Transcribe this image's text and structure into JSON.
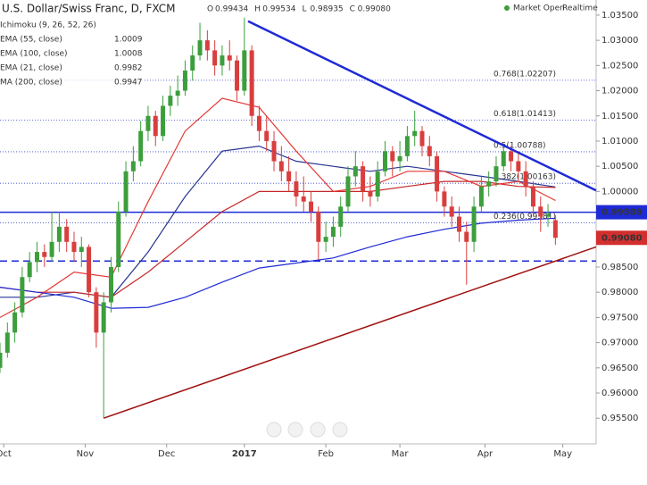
{
  "chart_data": {
    "type": "candlestick",
    "title": "U.S. Dollar/Swiss Franc, D, FXCM",
    "quote": [
      {
        "key": "O",
        "value": "0.99434"
      },
      {
        "key": "H",
        "value": "0.99534"
      },
      {
        "key": "L",
        "value": "0.98935"
      },
      {
        "key": "C",
        "value": "0.99080"
      }
    ],
    "status": [
      "Market Open",
      "Realtime"
    ],
    "up_color": "#3c9e3c",
    "down_color": "#d93e3e",
    "xlim": [
      0,
      161
    ],
    "ylim": [
      0.9499,
      1.038
    ],
    "xticks": [
      {
        "value": 1,
        "label": "Oct"
      },
      {
        "value": 23,
        "label": "Nov"
      },
      {
        "value": 45,
        "label": "Dec"
      },
      {
        "value": 66,
        "label": "2017"
      },
      {
        "value": 88,
        "label": "Feb"
      },
      {
        "value": 108,
        "label": "Mar"
      },
      {
        "value": 131,
        "label": "Apr"
      },
      {
        "value": 152,
        "label": "May"
      }
    ],
    "yticks": [
      {
        "value": 0.955,
        "label": "0.95500"
      },
      {
        "value": 0.96,
        "label": "0.96000"
      },
      {
        "value": 0.965,
        "label": "0.96500"
      },
      {
        "value": 0.97,
        "label": "0.97000"
      },
      {
        "value": 0.975,
        "label": "0.97500"
      },
      {
        "value": 0.98,
        "label": "0.98000"
      },
      {
        "value": 0.985,
        "label": "0.98500"
      },
      {
        "value": 0.99,
        "label": "0.99000"
      },
      {
        "value": 0.995,
        "label": "0.99500"
      },
      {
        "value": 1.0,
        "label": "1.00000"
      },
      {
        "value": 1.005,
        "label": "1.00500"
      },
      {
        "value": 1.01,
        "label": "1.01000"
      },
      {
        "value": 1.015,
        "label": "1.01500"
      },
      {
        "value": 1.02,
        "label": "1.02000"
      },
      {
        "value": 1.025,
        "label": "1.02500"
      },
      {
        "value": 1.03,
        "label": "1.03000"
      },
      {
        "value": 1.035,
        "label": "1.03500"
      }
    ],
    "x": [
      0,
      2,
      4,
      6,
      8,
      10,
      12,
      14,
      16,
      18,
      20,
      22,
      24,
      26,
      28,
      30,
      32,
      34,
      36,
      38,
      40,
      42,
      44,
      46,
      48,
      50,
      52,
      54,
      56,
      58,
      60,
      62,
      64,
      66,
      68,
      70,
      72,
      74,
      76,
      78,
      80,
      82,
      84,
      86,
      88,
      90,
      92,
      94,
      96,
      98,
      100,
      102,
      104,
      106,
      108,
      110,
      112,
      114,
      116,
      118,
      120,
      122,
      124,
      126,
      128,
      130,
      132,
      134,
      136,
      138,
      140,
      142,
      144,
      146,
      148,
      150
    ],
    "candles": [
      [
        0.965,
        0.97,
        0.964,
        0.968
      ],
      [
        0.968,
        0.974,
        0.967,
        0.972
      ],
      [
        0.972,
        0.978,
        0.97,
        0.976
      ],
      [
        0.976,
        0.985,
        0.975,
        0.983
      ],
      [
        0.983,
        0.988,
        0.982,
        0.986
      ],
      [
        0.986,
        0.99,
        0.984,
        0.988
      ],
      [
        0.988,
        0.9895,
        0.985,
        0.987
      ],
      [
        0.987,
        0.996,
        0.986,
        0.99
      ],
      [
        0.99,
        0.996,
        0.988,
        0.993
      ],
      [
        0.993,
        0.9945,
        0.988,
        0.99
      ],
      [
        0.99,
        0.992,
        0.986,
        0.988
      ],
      [
        0.988,
        0.991,
        0.985,
        0.989
      ],
      [
        0.989,
        0.9895,
        0.979,
        0.98
      ],
      [
        0.98,
        0.981,
        0.969,
        0.972
      ],
      [
        0.972,
        0.98,
        0.955,
        0.978
      ],
      [
        0.978,
        0.987,
        0.976,
        0.985
      ],
      [
        0.985,
        0.998,
        0.984,
        0.996
      ],
      [
        0.996,
        1.006,
        0.995,
        1.004
      ],
      [
        1.004,
        1.009,
        1.002,
        1.006
      ],
      [
        1.006,
        1.014,
        1.005,
        1.012
      ],
      [
        1.012,
        1.017,
        1.01,
        1.015
      ],
      [
        1.015,
        1.016,
        1.009,
        1.011
      ],
      [
        1.011,
        1.019,
        1.01,
        1.017
      ],
      [
        1.017,
        1.021,
        1.015,
        1.019
      ],
      [
        1.019,
        1.023,
        1.017,
        1.02
      ],
      [
        1.02,
        1.026,
        1.019,
        1.024
      ],
      [
        1.024,
        1.029,
        1.022,
        1.027
      ],
      [
        1.027,
        1.0335,
        1.026,
        1.03
      ],
      [
        1.03,
        1.032,
        1.026,
        1.028
      ],
      [
        1.028,
        1.03,
        1.023,
        1.025
      ],
      [
        1.025,
        1.029,
        1.023,
        1.027
      ],
      [
        1.027,
        1.03,
        1.024,
        1.026
      ],
      [
        1.026,
        1.027,
        1.018,
        1.02
      ],
      [
        1.02,
        1.0345,
        1.019,
        1.028
      ],
      [
        1.028,
        1.029,
        1.013,
        1.015
      ],
      [
        1.015,
        1.017,
        1.01,
        1.012
      ],
      [
        1.012,
        1.015,
        1.008,
        1.01
      ],
      [
        1.01,
        1.012,
        1.004,
        1.006
      ],
      [
        1.006,
        1.009,
        1.002,
        1.004
      ],
      [
        1.004,
        1.007,
        1.0,
        1.002
      ],
      [
        1.002,
        1.004,
        0.997,
        0.999
      ],
      [
        0.999,
        1.003,
        0.996,
        0.998
      ],
      [
        0.998,
        1.0,
        0.994,
        0.996
      ],
      [
        0.996,
        0.997,
        0.9865,
        0.99
      ],
      [
        0.99,
        0.994,
        0.988,
        0.991
      ],
      [
        0.991,
        0.995,
        0.989,
        0.993
      ],
      [
        0.993,
        0.999,
        0.991,
        0.997
      ],
      [
        0.997,
        1.005,
        0.996,
        1.003
      ],
      [
        1.003,
        1.008,
        1.001,
        1.005
      ],
      [
        1.005,
        1.006,
        0.998,
        1.0
      ],
      [
        1.0,
        1.003,
        0.997,
        0.999
      ],
      [
        0.999,
        1.006,
        0.998,
        1.004
      ],
      [
        1.004,
        1.01,
        1.003,
        1.008
      ],
      [
        1.008,
        1.009,
        1.003,
        1.006
      ],
      [
        1.006,
        1.01,
        1.004,
        1.007
      ],
      [
        1.007,
        1.013,
        1.006,
        1.011
      ],
      [
        1.011,
        1.016,
        1.009,
        1.012
      ],
      [
        1.012,
        1.013,
        1.007,
        1.009
      ],
      [
        1.009,
        1.011,
        1.005,
        1.007
      ],
      [
        1.007,
        1.008,
        0.998,
        1.0
      ],
      [
        1.0,
        1.001,
        0.995,
        0.997
      ],
      [
        0.997,
        0.999,
        0.993,
        0.995
      ],
      [
        0.995,
        0.997,
        0.99,
        0.992
      ],
      [
        0.992,
        0.994,
        0.9815,
        0.99
      ],
      [
        0.99,
        0.999,
        0.988,
        0.997
      ],
      [
        0.997,
        1.003,
        0.996,
        1.001
      ],
      [
        1.001,
        1.004,
        0.999,
        1.002
      ],
      [
        1.002,
        1.007,
        1.001,
        1.005
      ],
      [
        1.005,
        1.0095,
        1.004,
        1.008
      ],
      [
        1.008,
        1.009,
        1.004,
        1.006
      ],
      [
        1.006,
        1.008,
        1.002,
        1.004
      ],
      [
        1.004,
        1.006,
        0.999,
        1.001
      ],
      [
        1.001,
        1.002,
        0.995,
        0.997
      ],
      [
        0.997,
        0.999,
        0.992,
        0.995
      ],
      [
        0.995,
        0.9975,
        0.993,
        0.9955
      ],
      [
        0.9943,
        0.9953,
        0.9894,
        0.9908
      ]
    ],
    "indicators": [
      {
        "name": "Ichimoku (9, 26, 52, 26)"
      },
      {
        "name": "EMA (55, close)",
        "last": 1.0009,
        "color": "#283593",
        "x": [
          0,
          10,
          20,
          30,
          40,
          50,
          60,
          70,
          80,
          90,
          100,
          110,
          120,
          130,
          140,
          150
        ],
        "values": [
          0.979,
          0.979,
          0.98,
          0.979,
          0.988,
          0.999,
          1.008,
          1.009,
          1.006,
          1.005,
          1.004,
          1.005,
          1.004,
          1.003,
          1.002,
          1.0009
        ]
      },
      {
        "name": "EMA (100, close)",
        "last": 1.0008,
        "color": "#c62828",
        "x": [
          0,
          10,
          20,
          30,
          40,
          50,
          60,
          70,
          80,
          90,
          100,
          110,
          120,
          130,
          140,
          150
        ],
        "values": [
          0.981,
          0.98,
          0.98,
          0.979,
          0.984,
          0.99,
          0.996,
          1.0,
          1.0,
          1.0,
          1.0,
          1.001,
          1.002,
          1.002,
          1.001,
          1.0008
        ]
      },
      {
        "name": "EMA (21, close)",
        "last": 0.9982,
        "color": "#e53935",
        "x": [
          0,
          10,
          20,
          30,
          40,
          50,
          60,
          70,
          80,
          90,
          100,
          110,
          120,
          130,
          140,
          150
        ],
        "values": [
          0.975,
          0.979,
          0.984,
          0.983,
          0.998,
          1.012,
          1.0185,
          1.0167,
          1.008,
          1.0,
          1.001,
          1.004,
          1.004,
          1.001,
          1.002,
          0.9982
        ]
      },
      {
        "name": "MA (200, close)",
        "last": 0.9947,
        "color": "#1e2ad6",
        "x": [
          0,
          10,
          20,
          30,
          40,
          50,
          60,
          70,
          80,
          90,
          100,
          110,
          120,
          130,
          140,
          150
        ],
        "values": [
          0.981,
          0.98,
          0.979,
          0.9768,
          0.977,
          0.979,
          0.982,
          0.9848,
          0.9858,
          0.9868,
          0.989,
          0.991,
          0.9925,
          0.9937,
          0.9943,
          0.9947
        ]
      }
    ],
    "trendlines": [
      {
        "x": [
          67,
          161
        ],
        "values": [
          1.0338,
          1.0002
        ],
        "color": "#1e2ad6",
        "width": 2.5
      },
      {
        "x": [
          28,
          161
        ],
        "values": [
          0.955,
          0.989
        ],
        "color": "#a01010",
        "width": 1.5
      }
    ],
    "hlines": [
      {
        "value": 0.99588,
        "color": "#1e2ad6",
        "style": "solid"
      },
      {
        "value": 0.9862,
        "color": "#1e2ad6",
        "style": "dashed"
      }
    ],
    "fib": [
      {
        "value": 1.02207,
        "label": "0.768(1.02207)"
      },
      {
        "value": 1.01413,
        "label": "0.618(1.01413)"
      },
      {
        "value": 1.00788,
        "label": "0.5(1.00788)"
      },
      {
        "value": 1.00163,
        "label": "0.382(1.00163)"
      },
      {
        "value": 0.99381,
        "label": "0.236(0.99381)"
      }
    ],
    "fib_color": "#3344cc",
    "price_labels": [
      {
        "value": 0.99588,
        "label": "0.99588",
        "color": "#1e2ad6"
      },
      {
        "value": 0.9908,
        "label": "0.99080",
        "color": "#d32f2f"
      }
    ]
  }
}
